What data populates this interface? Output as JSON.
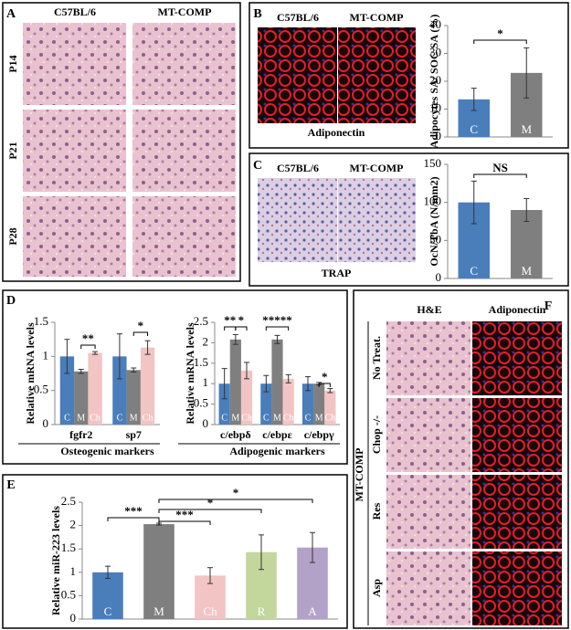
{
  "panels": {
    "A": {
      "label": "A",
      "columns": [
        "C57BL/6",
        "MT-COMP"
      ],
      "rows": [
        "P14",
        "P21",
        "P28"
      ]
    },
    "B": {
      "label": "B",
      "columns": [
        "C57BL/6",
        "MT-COMP"
      ],
      "caption": "Adiponectin"
    },
    "C": {
      "label": "C",
      "columns": [
        "C57BL/6",
        "MT-COMP"
      ],
      "caption": "TRAP"
    },
    "D": {
      "label": "D"
    },
    "E": {
      "label": "E"
    },
    "F": {
      "label": "F",
      "columns": [
        "H&E",
        "Adiponectin"
      ],
      "group": "MT-COMP",
      "rows": [
        "No Treat.",
        "Chop -/-",
        "Res",
        "Asp"
      ]
    }
  },
  "chart_data": [
    {
      "type": "bar",
      "y_label": "Adipocytes SA/ SOC SA (%)",
      "categories": [
        "C",
        "M"
      ],
      "values": [
        13.5,
        23
      ],
      "errors": [
        4,
        9
      ],
      "colors": [
        "#4a7ebb",
        "#7f7f7f"
      ],
      "ylim": [
        0,
        40
      ],
      "yticks": [
        0,
        10,
        20,
        30,
        40
      ],
      "annotations": [
        "*"
      ]
    },
    {
      "type": "bar",
      "y_label": "OcN/TbA (N/mm2)",
      "categories": [
        "C",
        "M"
      ],
      "values": [
        100,
        90
      ],
      "errors": [
        28,
        15
      ],
      "colors": [
        "#4a7ebb",
        "#7f7f7f"
      ],
      "ylim": [
        0,
        150
      ],
      "yticks": [
        0,
        50,
        100,
        150
      ],
      "annotations": [
        "NS"
      ]
    },
    {
      "type": "bar",
      "y_label": "Relative mRNA levels",
      "x_label": "Osteogenic markers",
      "categories": [
        "fgfr2",
        "sp7"
      ],
      "series": [
        {
          "name": "C",
          "color": "#4a7ebb",
          "values": [
            1,
            1
          ],
          "errors": [
            0.25,
            0.33
          ]
        },
        {
          "name": "M",
          "color": "#7f7f7f",
          "values": [
            0.78,
            0.8
          ],
          "errors": [
            0.03,
            0.03
          ]
        },
        {
          "name": "Ch",
          "color": "#f2c4c4",
          "values": [
            1.05,
            1.13
          ],
          "errors": [
            0.02,
            0.1
          ]
        }
      ],
      "ylim": [
        0,
        1.5
      ],
      "yticks": [
        0,
        0.5,
        1,
        1.5
      ],
      "annotations": [
        "**",
        "*"
      ]
    },
    {
      "type": "bar",
      "y_label": "Relative mRNA levels",
      "x_label": "Adipogenic markers",
      "categories": [
        "c/ebpδ",
        "c/ebpε",
        "c/ebpγ"
      ],
      "series": [
        {
          "name": "C",
          "color": "#4a7ebb",
          "values": [
            1,
            1,
            1
          ],
          "errors": [
            0.37,
            0.2,
            0.17
          ]
        },
        {
          "name": "M",
          "color": "#7f7f7f",
          "values": [
            2.08,
            2.08,
            1
          ],
          "errors": [
            0.12,
            0.1,
            0.03
          ]
        },
        {
          "name": "Ch",
          "color": "#f2c4c4",
          "values": [
            1.32,
            1.12,
            0.83
          ],
          "errors": [
            0.2,
            0.1,
            0.05
          ]
        }
      ],
      "ylim": [
        0,
        2.5
      ],
      "yticks": [
        0,
        0.5,
        1,
        1.5,
        2,
        2.5
      ],
      "annotations": [
        "**",
        "*",
        "*****",
        "*"
      ]
    },
    {
      "type": "bar",
      "y_label": "Relative miR-223 levels",
      "categories": [
        "C",
        "M",
        "Ch",
        "R",
        "A"
      ],
      "values": [
        1,
        2.03,
        0.93,
        1.43,
        1.53
      ],
      "errors": [
        0.13,
        0.02,
        0.17,
        0.37,
        0.32
      ],
      "colors": [
        "#4a7ebb",
        "#7f7f7f",
        "#f2c4c4",
        "#c3d69b",
        "#b3a2c7"
      ],
      "ylim": [
        0,
        2.5
      ],
      "yticks": [
        0,
        0.5,
        1,
        1.5,
        2,
        2.5
      ],
      "annotations": [
        "***",
        "***",
        "*",
        "*"
      ]
    }
  ]
}
